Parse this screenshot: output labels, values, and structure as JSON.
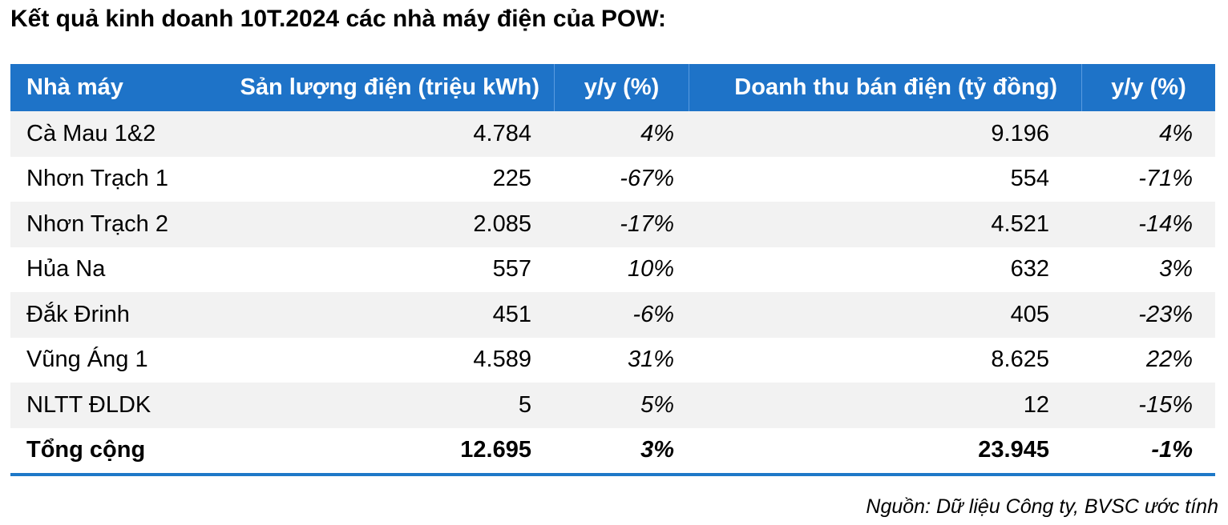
{
  "title": "Kết quả kinh doanh 10T.2024 các nhà máy điện của POW:",
  "table": {
    "headers": {
      "plant": "Nhà máy",
      "production": "Sản lượng điện (triệu kWh)",
      "production_yy": "y/y (%)",
      "revenue": "Doanh thu bán điện (tỷ đồng)",
      "revenue_yy": "y/y (%)"
    },
    "rows": [
      {
        "plant": "Cà Mau 1&2",
        "production": "4.784",
        "production_yy": "4%",
        "revenue": "9.196",
        "revenue_yy": "4%"
      },
      {
        "plant": "Nhơn Trạch 1",
        "production": "225",
        "production_yy": "-67%",
        "revenue": "554",
        "revenue_yy": "-71%"
      },
      {
        "plant": "Nhơn Trạch 2",
        "production": "2.085",
        "production_yy": "-17%",
        "revenue": "4.521",
        "revenue_yy": "-14%"
      },
      {
        "plant": "Hủa Na",
        "production": "557",
        "production_yy": "10%",
        "revenue": "632",
        "revenue_yy": "3%"
      },
      {
        "plant": "Đắk Đrinh",
        "production": "451",
        "production_yy": "-6%",
        "revenue": "405",
        "revenue_yy": "-23%"
      },
      {
        "plant": "Vũng Áng 1",
        "production": "4.589",
        "production_yy": "31%",
        "revenue": "8.625",
        "revenue_yy": "22%"
      },
      {
        "plant": "NLTT ĐLDK",
        "production": "5",
        "production_yy": "5%",
        "revenue": "12",
        "revenue_yy": "-15%"
      }
    ],
    "total": {
      "plant": "Tổng cộng",
      "production": "12.695",
      "production_yy": "3%",
      "revenue": "23.945",
      "revenue_yy": "-1%"
    }
  },
  "source": "Nguồn: Dữ liệu Công ty, BVSC ước tính",
  "colors": {
    "header_bg": "#1e73c8",
    "stripe_bg": "#f2f2f2",
    "bottom_rule": "#1e78c8"
  }
}
